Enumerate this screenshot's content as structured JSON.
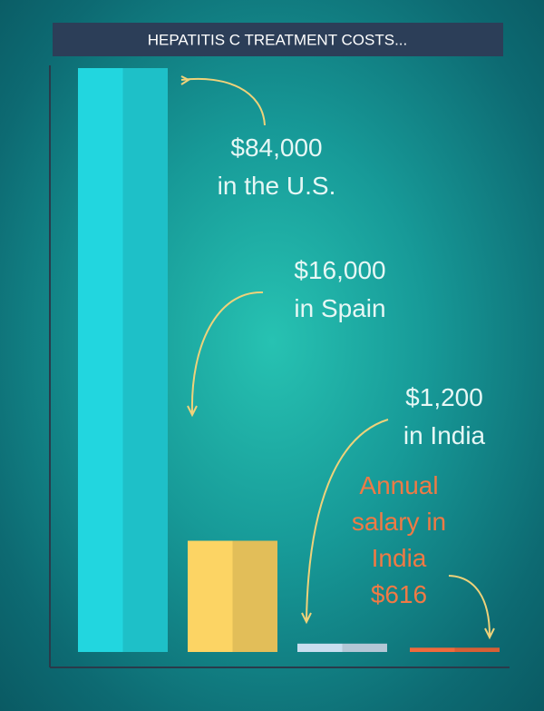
{
  "chart_data": {
    "type": "bar",
    "title": "HEPATITIS C TREATMENT COSTS...",
    "categories": [
      "in the U.S.",
      "in Spain",
      "in India",
      "Annual salary in India"
    ],
    "values": [
      84000,
      16000,
      1200,
      616
    ],
    "value_labels": [
      "$84,000",
      "$16,000",
      "$1,200",
      "$616"
    ],
    "colors": [
      "#22d6df",
      "#fcd464",
      "#c9deef",
      "#f06a3c"
    ],
    "ylim": [
      0,
      84000
    ]
  }
}
